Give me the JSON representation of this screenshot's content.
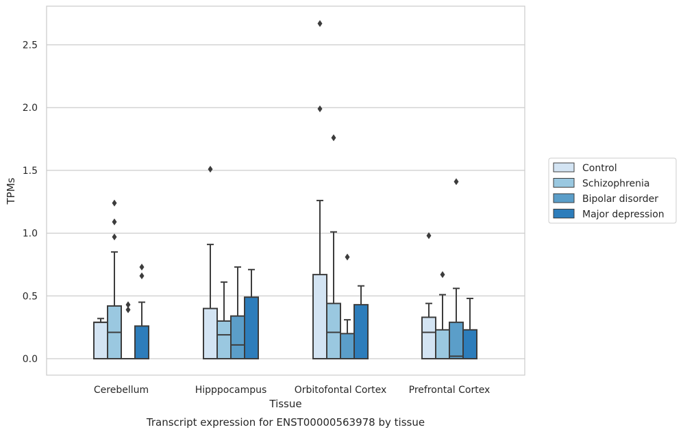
{
  "chart_data": {
    "type": "box",
    "title": "Transcript expression for ENST00000563978 by tissue",
    "xlabel": "Tissue",
    "ylabel": "TPMs",
    "ylim": [
      -0.13,
      2.82
    ],
    "yticks": [
      "0.0",
      "0.5",
      "1.0",
      "1.5",
      "2.0",
      "2.5"
    ],
    "categories": [
      "Cerebellum",
      "Hipppocampus",
      "Orbitofontal Cortex",
      "Prefrontal Cortex"
    ],
    "grid": true,
    "legend_position": "right",
    "series": [
      {
        "name": "Control",
        "color": "#d3e4f3",
        "boxes": [
          {
            "min": 0.0,
            "q1": 0.0,
            "median": 0.29,
            "q3": 0.29,
            "max": 0.32,
            "outliers": []
          },
          {
            "min": 0.0,
            "q1": 0.0,
            "median": 0.0,
            "q3": 0.4,
            "max": 0.91,
            "outliers": [
              1.51
            ]
          },
          {
            "min": 0.0,
            "q1": 0.0,
            "median": 0.0,
            "q3": 0.67,
            "max": 1.26,
            "outliers": [
              1.99,
              2.67
            ]
          },
          {
            "min": 0.0,
            "q1": 0.0,
            "median": 0.21,
            "q3": 0.33,
            "max": 0.44,
            "outliers": [
              0.98
            ]
          }
        ]
      },
      {
        "name": "Schizophrenia",
        "color": "#9ac8e0",
        "boxes": [
          {
            "min": 0.0,
            "q1": 0.0,
            "median": 0.21,
            "q3": 0.42,
            "max": 0.85,
            "outliers": [
              0.97,
              1.09,
              1.24
            ]
          },
          {
            "min": 0.0,
            "q1": 0.0,
            "median": 0.19,
            "q3": 0.3,
            "max": 0.61,
            "outliers": []
          },
          {
            "min": 0.0,
            "q1": 0.0,
            "median": 0.21,
            "q3": 0.44,
            "max": 1.01,
            "outliers": [
              1.76
            ]
          },
          {
            "min": 0.0,
            "q1": 0.0,
            "median": 0.0,
            "q3": 0.23,
            "max": 0.51,
            "outliers": [
              0.67
            ]
          }
        ]
      },
      {
        "name": "Bipolar disorder",
        "color": "#5b9ec9",
        "boxes": [
          {
            "min": 0.0,
            "q1": 0.0,
            "median": 0.0,
            "q3": 0.0,
            "max": 0.0,
            "outliers": [
              0.39,
              0.43
            ]
          },
          {
            "min": 0.0,
            "q1": 0.0,
            "median": 0.11,
            "q3": 0.34,
            "max": 0.73,
            "outliers": []
          },
          {
            "min": 0.0,
            "q1": 0.0,
            "median": 0.0,
            "q3": 0.2,
            "max": 0.31,
            "outliers": [
              0.81
            ]
          },
          {
            "min": 0.0,
            "q1": 0.0,
            "median": 0.02,
            "q3": 0.29,
            "max": 0.56,
            "outliers": [
              1.41
            ]
          }
        ]
      },
      {
        "name": "Major depression",
        "color": "#2d7dbb",
        "boxes": [
          {
            "min": 0.0,
            "q1": 0.0,
            "median": 0.0,
            "q3": 0.26,
            "max": 0.45,
            "outliers": [
              0.66,
              0.73
            ]
          },
          {
            "min": 0.0,
            "q1": 0.0,
            "median": 0.0,
            "q3": 0.49,
            "max": 0.71,
            "outliers": []
          },
          {
            "min": 0.0,
            "q1": 0.0,
            "median": 0.0,
            "q3": 0.43,
            "max": 0.58,
            "outliers": []
          },
          {
            "min": 0.0,
            "q1": 0.0,
            "median": 0.0,
            "q3": 0.23,
            "max": 0.48,
            "outliers": []
          }
        ]
      }
    ]
  }
}
